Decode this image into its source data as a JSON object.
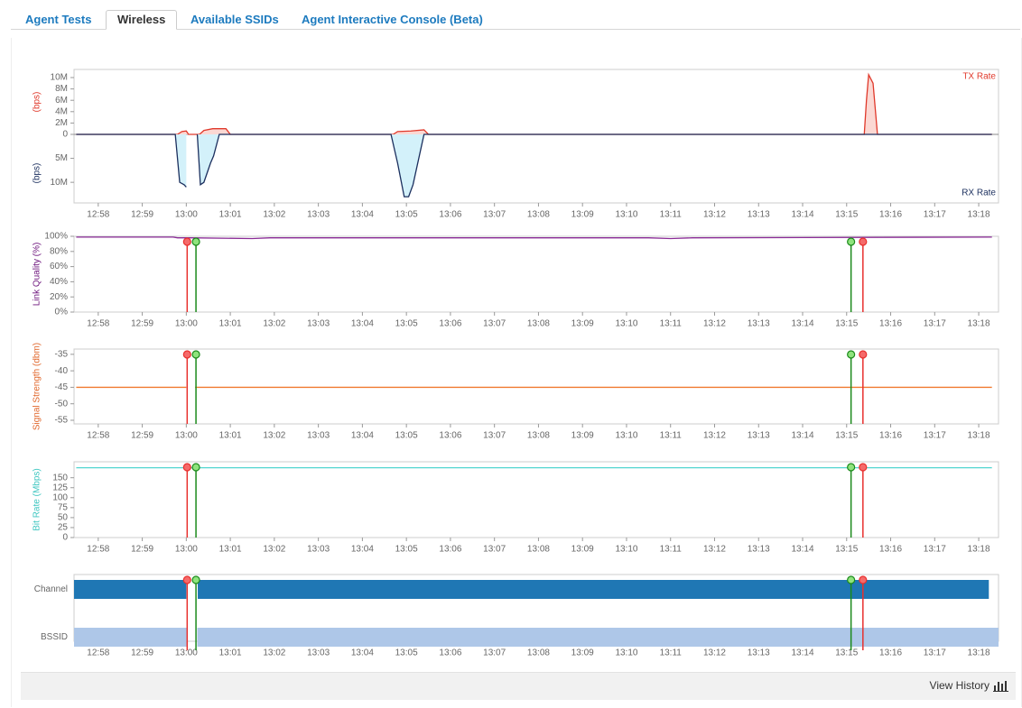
{
  "tabs": [
    {
      "label": "Agent Tests",
      "active": false
    },
    {
      "label": "Wireless",
      "active": true
    },
    {
      "label": "Available SSIDs",
      "active": false
    },
    {
      "label": "Agent Interactive Console (Beta)",
      "active": false
    }
  ],
  "chart_data": [
    {
      "type": "mirror",
      "ylabel": "(bps)",
      "y2label": "(bps)",
      "xlim": [
        777.45,
        798.45
      ],
      "xticks": [
        {
          "value": 778,
          "label": "12:58"
        },
        {
          "value": 779,
          "label": "12:59"
        },
        {
          "value": 780,
          "label": "13:00"
        },
        {
          "value": 781,
          "label": "13:01"
        },
        {
          "value": 782,
          "label": "13:02"
        },
        {
          "value": 783,
          "label": "13:03"
        },
        {
          "value": 784,
          "label": "13:04"
        },
        {
          "value": 785,
          "label": "13:05"
        },
        {
          "value": 786,
          "label": "13:06"
        },
        {
          "value": 787,
          "label": "13:07"
        },
        {
          "value": 788,
          "label": "13:08"
        },
        {
          "value": 789,
          "label": "13:09"
        },
        {
          "value": 790,
          "label": "13:10"
        },
        {
          "value": 791,
          "label": "13:11"
        },
        {
          "value": 792,
          "label": "13:12"
        },
        {
          "value": 793,
          "label": "13:13"
        },
        {
          "value": 794,
          "label": "13:14"
        },
        {
          "value": 795,
          "label": "13:15"
        },
        {
          "value": 796,
          "label": "13:16"
        },
        {
          "value": 797,
          "label": "13:17"
        },
        {
          "value": 798,
          "label": "13:18"
        }
      ],
      "ylim": [
        0,
        11430000
      ],
      "yticks": [
        0,
        {
          "value": 2000000,
          "label": "2M"
        },
        {
          "value": 4000000,
          "label": "4M"
        },
        {
          "value": 6000000,
          "label": "6M"
        },
        {
          "value": 8000000,
          "label": "8M"
        },
        {
          "value": 10000000,
          "label": "10M"
        }
      ],
      "y2lim": [
        0,
        14300000
      ],
      "y2ticks": [
        {
          "value": 5000000,
          "label": "5M"
        },
        {
          "value": 10000000,
          "label": "10M"
        }
      ],
      "series": [
        {
          "name": "TX Rate",
          "color": "#e0392b",
          "fill": "#fbd8d3",
          "x": [
            777.5,
            779.8,
            779.9,
            780.0,
            780.05,
            780.3,
            780.4,
            780.6,
            780.9,
            781.0,
            781.05,
            784.7,
            784.8,
            785.1,
            785.4,
            785.5,
            795.4,
            795.45,
            795.5,
            795.6,
            795.7,
            798.3
          ],
          "values": [
            0,
            0,
            500000,
            600000,
            0,
            0,
            700000,
            1000000,
            1000000,
            0,
            0,
            0,
            500000,
            600000,
            800000,
            0,
            0,
            6000000,
            10500000,
            9000000,
            0,
            0
          ]
        },
        {
          "name": "RX Rate",
          "color": "#1b2f5e",
          "fill": "#d3f1fa",
          "axis": "y2",
          "x": [
            777.5,
            779.75,
            779.85,
            779.95,
            780.0,
            780.1,
            780.25,
            780.32,
            780.4,
            780.55,
            780.62,
            780.75,
            784.65,
            784.8,
            784.95,
            785.05,
            785.15,
            785.4,
            798.3
          ],
          "values": [
            0,
            0,
            10000000,
            10500000,
            11000000,
            null,
            0,
            10500000,
            10000000,
            6000000,
            4500000,
            0,
            0,
            6000000,
            13000000,
            13000000,
            10500000,
            0,
            0
          ]
        }
      ]
    },
    {
      "type": "line",
      "ylabel": "Link Quality (%)",
      "ylabel_color": "#6a0f7a",
      "xlim": [
        777.45,
        798.45
      ],
      "xticks": [
        {
          "value": 778,
          "label": "12:58"
        },
        {
          "value": 779,
          "label": "12:59"
        },
        {
          "value": 780,
          "label": "13:00"
        },
        {
          "value": 781,
          "label": "13:01"
        },
        {
          "value": 782,
          "label": "13:02"
        },
        {
          "value": 783,
          "label": "13:03"
        },
        {
          "value": 784,
          "label": "13:04"
        },
        {
          "value": 785,
          "label": "13:05"
        },
        {
          "value": 786,
          "label": "13:06"
        },
        {
          "value": 787,
          "label": "13:07"
        },
        {
          "value": 788,
          "label": "13:08"
        },
        {
          "value": 789,
          "label": "13:09"
        },
        {
          "value": 790,
          "label": "13:10"
        },
        {
          "value": 791,
          "label": "13:11"
        },
        {
          "value": 792,
          "label": "13:12"
        },
        {
          "value": 793,
          "label": "13:13"
        },
        {
          "value": 794,
          "label": "13:14"
        },
        {
          "value": 795,
          "label": "13:15"
        },
        {
          "value": 796,
          "label": "13:16"
        },
        {
          "value": 797,
          "label": "13:17"
        },
        {
          "value": 798,
          "label": "13:18"
        }
      ],
      "ylim": [
        0,
        100
      ],
      "yticks": [
        {
          "value": 0,
          "label": "0%"
        },
        {
          "value": 20,
          "label": "20%"
        },
        {
          "value": 40,
          "label": "40%"
        },
        {
          "value": 60,
          "label": "60%"
        },
        {
          "value": 80,
          "label": "80%"
        },
        {
          "value": 100,
          "label": "100%"
        }
      ],
      "series": [
        {
          "color": "#8a2b96",
          "x": [
            777.5,
            779.7,
            779.8,
            780.1,
            781.5,
            781.9,
            786.5,
            790.5,
            791.0,
            791.5,
            798.3
          ],
          "values": [
            99,
            99,
            98,
            98,
            97,
            98,
            98,
            98,
            97,
            98,
            99
          ]
        }
      ],
      "markers": [
        {
          "x": 780.02,
          "color": "#e8302e",
          "fill": "#f56a6a"
        },
        {
          "x": 780.22,
          "color": "#1b8a1b",
          "fill": "#8fe37d"
        },
        {
          "x": 795.1,
          "color": "#1b8a1b",
          "fill": "#8fe37d"
        },
        {
          "x": 795.37,
          "color": "#e8302e",
          "fill": "#f56a6a"
        }
      ]
    },
    {
      "type": "line",
      "ylabel": "Signal Strength (dbm)",
      "ylabel_color": "#e0662a",
      "xlim": [
        777.45,
        798.45
      ],
      "xticks": [
        {
          "value": 778,
          "label": "12:58"
        },
        {
          "value": 779,
          "label": "12:59"
        },
        {
          "value": 780,
          "label": "13:00"
        },
        {
          "value": 781,
          "label": "13:01"
        },
        {
          "value": 782,
          "label": "13:02"
        },
        {
          "value": 783,
          "label": "13:03"
        },
        {
          "value": 784,
          "label": "13:04"
        },
        {
          "value": 785,
          "label": "13:05"
        },
        {
          "value": 786,
          "label": "13:06"
        },
        {
          "value": 787,
          "label": "13:07"
        },
        {
          "value": 788,
          "label": "13:08"
        },
        {
          "value": 789,
          "label": "13:09"
        },
        {
          "value": 790,
          "label": "13:10"
        },
        {
          "value": 791,
          "label": "13:11"
        },
        {
          "value": 792,
          "label": "13:12"
        },
        {
          "value": 793,
          "label": "13:13"
        },
        {
          "value": 794,
          "label": "13:14"
        },
        {
          "value": 795,
          "label": "13:15"
        },
        {
          "value": 796,
          "label": "13:16"
        },
        {
          "value": 797,
          "label": "13:17"
        },
        {
          "value": 798,
          "label": "13:18"
        }
      ],
      "ylim": [
        -56.1,
        -33.4
      ],
      "yticks": [
        -35,
        -40,
        -45,
        -50,
        -55
      ],
      "series": [
        {
          "color": "#f07a30",
          "x": [
            777.5,
            780.0,
            780.1,
            780.2,
            798.3
          ],
          "values": [
            -45,
            -45,
            null,
            -45,
            -45
          ]
        }
      ],
      "markers": [
        {
          "x": 780.02,
          "color": "#e8302e",
          "fill": "#f56a6a"
        },
        {
          "x": 780.22,
          "color": "#1b8a1b",
          "fill": "#8fe37d"
        },
        {
          "x": 795.1,
          "color": "#1b8a1b",
          "fill": "#8fe37d"
        },
        {
          "x": 795.37,
          "color": "#e8302e",
          "fill": "#f56a6a"
        }
      ]
    },
    {
      "type": "line",
      "ylabel": "Bit Rate (Mbps)",
      "ylabel_color": "#3cc6c0",
      "xlim": [
        777.45,
        798.45
      ],
      "xticks": [
        {
          "value": 778,
          "label": "12:58"
        },
        {
          "value": 779,
          "label": "12:59"
        },
        {
          "value": 780,
          "label": "13:00"
        },
        {
          "value": 781,
          "label": "13:01"
        },
        {
          "value": 782,
          "label": "13:02"
        },
        {
          "value": 783,
          "label": "13:03"
        },
        {
          "value": 784,
          "label": "13:04"
        },
        {
          "value": 785,
          "label": "13:05"
        },
        {
          "value": 786,
          "label": "13:06"
        },
        {
          "value": 787,
          "label": "13:07"
        },
        {
          "value": 788,
          "label": "13:08"
        },
        {
          "value": 789,
          "label": "13:09"
        },
        {
          "value": 790,
          "label": "13:10"
        },
        {
          "value": 791,
          "label": "13:11"
        },
        {
          "value": 792,
          "label": "13:12"
        },
        {
          "value": 793,
          "label": "13:13"
        },
        {
          "value": 794,
          "label": "13:14"
        },
        {
          "value": 795,
          "label": "13:15"
        },
        {
          "value": 796,
          "label": "13:16"
        },
        {
          "value": 797,
          "label": "13:17"
        },
        {
          "value": 798,
          "label": "13:18"
        }
      ],
      "ylim": [
        0,
        190
      ],
      "yticks": [
        0,
        25,
        50,
        75,
        100,
        125,
        150
      ],
      "series": [
        {
          "color": "#52d6d0",
          "x": [
            777.5,
            798.3
          ],
          "values": [
            175,
            175
          ]
        }
      ],
      "markers": [
        {
          "x": 780.02,
          "color": "#e8302e",
          "fill": "#f56a6a"
        },
        {
          "x": 780.22,
          "color": "#1b8a1b",
          "fill": "#8fe37d"
        },
        {
          "x": 795.1,
          "color": "#1b8a1b",
          "fill": "#8fe37d"
        },
        {
          "x": 795.37,
          "color": "#e8302e",
          "fill": "#f56a6a"
        }
      ]
    },
    {
      "type": "timeline",
      "xlim": [
        777.45,
        798.45
      ],
      "xticks": [
        {
          "value": 778,
          "label": "12:58"
        },
        {
          "value": 779,
          "label": "12:59"
        },
        {
          "value": 780,
          "label": "13:00"
        },
        {
          "value": 781,
          "label": "13:01"
        },
        {
          "value": 782,
          "label": "13:02"
        },
        {
          "value": 783,
          "label": "13:03"
        },
        {
          "value": 784,
          "label": "13:04"
        },
        {
          "value": 785,
          "label": "13:05"
        },
        {
          "value": 786,
          "label": "13:06"
        },
        {
          "value": 787,
          "label": "13:07"
        },
        {
          "value": 788,
          "label": "13:08"
        },
        {
          "value": 789,
          "label": "13:09"
        },
        {
          "value": 790,
          "label": "13:10"
        },
        {
          "value": 791,
          "label": "13:11"
        },
        {
          "value": 792,
          "label": "13:12"
        },
        {
          "value": 793,
          "label": "13:13"
        },
        {
          "value": 794,
          "label": "13:14"
        },
        {
          "value": 795,
          "label": "13:15"
        },
        {
          "value": 796,
          "label": "13:16"
        },
        {
          "value": 797,
          "label": "13:17"
        },
        {
          "value": 798,
          "label": "13:18"
        }
      ],
      "categories": [
        "Channel",
        "BSSID"
      ],
      "series": [
        {
          "color": "#1f77b4",
          "segments": [
            [
              777.45,
              780.0
            ],
            [
              780.26,
              798.23
            ]
          ]
        },
        {
          "color": "#aec7e8",
          "segments": [
            [
              777.45,
              780.02
            ],
            [
              780.25,
              798.45
            ]
          ]
        }
      ],
      "markers": [
        {
          "x": 780.02,
          "color": "#e8302e",
          "fill": "#f56a6a"
        },
        {
          "x": 780.22,
          "color": "#1b8a1b",
          "fill": "#8fe37d"
        },
        {
          "x": 795.1,
          "color": "#1b8a1b",
          "fill": "#8fe37d"
        },
        {
          "x": 795.37,
          "color": "#e8302e",
          "fill": "#f56a6a"
        }
      ]
    }
  ],
  "footer": {
    "link": "View History"
  }
}
